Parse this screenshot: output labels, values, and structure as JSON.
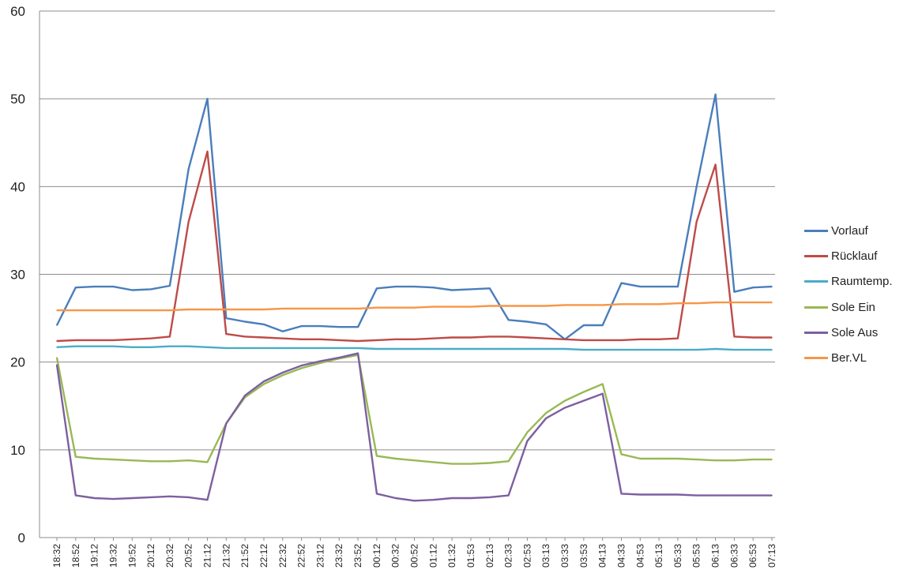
{
  "chart_data": {
    "type": "line",
    "title": "",
    "xlabel": "",
    "ylabel": "",
    "ylim": [
      0,
      60
    ],
    "yticks": [
      0,
      10,
      20,
      30,
      40,
      50,
      60
    ],
    "grid": true,
    "legend_position": "right",
    "x": [
      "18:32",
      "18:52",
      "19:12",
      "19:32",
      "19:52",
      "20:12",
      "20:32",
      "20:52",
      "21:12",
      "21:32",
      "21:52",
      "22:12",
      "22:32",
      "22:52",
      "23:12",
      "23:32",
      "23:52",
      "00:12",
      "00:32",
      "00:52",
      "01:12",
      "01:32",
      "01:53",
      "02:13",
      "02:33",
      "02:53",
      "03:13",
      "03:33",
      "03:53",
      "04:13",
      "04:33",
      "04:53",
      "05:13",
      "05:33",
      "05:53",
      "06:13",
      "06:33",
      "06:53",
      "07:13"
    ],
    "series": [
      {
        "name": "Vorlauf",
        "color": "#4a7ebb",
        "values": [
          24.2,
          28.5,
          28.6,
          28.6,
          28.2,
          28.3,
          28.7,
          42.0,
          50.0,
          25.0,
          24.6,
          24.3,
          23.5,
          24.1,
          24.1,
          24.0,
          24.0,
          28.4,
          28.6,
          28.6,
          28.5,
          28.2,
          28.3,
          28.4,
          24.8,
          24.6,
          24.3,
          22.6,
          24.2,
          24.2,
          29.0,
          28.6,
          28.6,
          28.6,
          40.0,
          50.5,
          28.0,
          28.5,
          28.6
        ]
      },
      {
        "name": "Rücklauf",
        "color": "#be4b48",
        "values": [
          22.4,
          22.5,
          22.5,
          22.5,
          22.6,
          22.7,
          22.9,
          36.0,
          44.0,
          23.2,
          22.9,
          22.8,
          22.7,
          22.6,
          22.6,
          22.5,
          22.4,
          22.5,
          22.6,
          22.6,
          22.7,
          22.8,
          22.8,
          22.9,
          22.9,
          22.8,
          22.7,
          22.6,
          22.5,
          22.5,
          22.5,
          22.6,
          22.6,
          22.7,
          36.0,
          42.5,
          22.9,
          22.8,
          22.8
        ]
      },
      {
        "name": "Raumtemp.",
        "color": "#4bacc6",
        "values": [
          21.7,
          21.8,
          21.8,
          21.8,
          21.7,
          21.7,
          21.8,
          21.8,
          21.7,
          21.6,
          21.6,
          21.6,
          21.6,
          21.6,
          21.6,
          21.6,
          21.6,
          21.5,
          21.5,
          21.5,
          21.5,
          21.5,
          21.5,
          21.5,
          21.5,
          21.5,
          21.5,
          21.5,
          21.4,
          21.4,
          21.4,
          21.4,
          21.4,
          21.4,
          21.4,
          21.5,
          21.4,
          21.4,
          21.4
        ]
      },
      {
        "name": "Sole Ein",
        "color": "#98b954",
        "values": [
          20.5,
          9.2,
          9.0,
          8.9,
          8.8,
          8.7,
          8.7,
          8.8,
          8.6,
          13.0,
          16.0,
          17.5,
          18.5,
          19.3,
          19.9,
          20.4,
          20.8,
          9.3,
          9.0,
          8.8,
          8.6,
          8.4,
          8.4,
          8.5,
          8.7,
          12.0,
          14.2,
          15.6,
          16.6,
          17.5,
          9.5,
          9.0,
          9.0,
          9.0,
          8.9,
          8.8,
          8.8,
          8.9,
          8.9
        ]
      },
      {
        "name": "Sole Aus",
        "color": "#7d5fa0",
        "values": [
          19.7,
          4.8,
          4.5,
          4.4,
          4.5,
          4.6,
          4.7,
          4.6,
          4.3,
          13.0,
          16.2,
          17.8,
          18.8,
          19.6,
          20.1,
          20.5,
          21.0,
          5.0,
          4.5,
          4.2,
          4.3,
          4.5,
          4.5,
          4.6,
          4.8,
          11.0,
          13.6,
          14.8,
          15.6,
          16.4,
          5.0,
          4.9,
          4.9,
          4.9,
          4.8,
          4.8,
          4.8,
          4.8,
          4.8
        ]
      },
      {
        "name": "Ber.VL",
        "color": "#f79646",
        "values": [
          25.9,
          25.9,
          25.9,
          25.9,
          25.9,
          25.9,
          25.9,
          26.0,
          26.0,
          26.0,
          26.0,
          26.0,
          26.1,
          26.1,
          26.1,
          26.1,
          26.1,
          26.2,
          26.2,
          26.2,
          26.3,
          26.3,
          26.3,
          26.4,
          26.4,
          26.4,
          26.4,
          26.5,
          26.5,
          26.5,
          26.6,
          26.6,
          26.6,
          26.7,
          26.7,
          26.8,
          26.8,
          26.8,
          26.8
        ]
      }
    ]
  }
}
